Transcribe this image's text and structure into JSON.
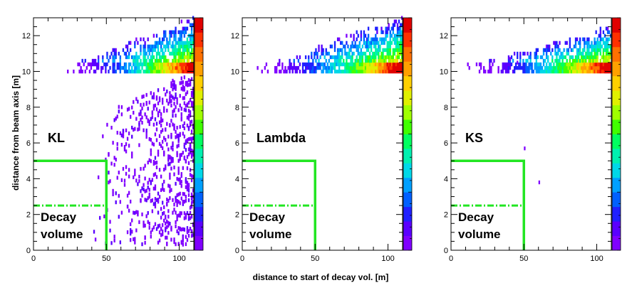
{
  "chart_data": {
    "type": "heatmap",
    "xlabel": "distance to start of decay vol. [m]",
    "ylabel": "distance from beam axis [m]",
    "xlim": [
      0,
      110
    ],
    "ylim": [
      0,
      13
    ],
    "x_ticks": [
      "0",
      "50",
      "100"
    ],
    "y_ticks": [
      "0",
      "2",
      "4",
      "6",
      "8",
      "10",
      "12"
    ],
    "colorscale": [
      "#8000ff",
      "#5a00ff",
      "#2020ff",
      "#0060ff",
      "#00a0ff",
      "#00d8e8",
      "#00f0b0",
      "#00ff60",
      "#40ff00",
      "#a0ff00",
      "#e0f000",
      "#ffd000",
      "#ffa000",
      "#ff7000",
      "#ff3000",
      "#e00000"
    ],
    "decay_volume": {
      "label_line1": "Decay",
      "label_line2": "volume",
      "outer_boundary": {
        "x_max": 50,
        "r_max": 5
      },
      "inner_boundary": {
        "r": 2.5,
        "style": "dash-dot"
      },
      "color": "#22e622"
    },
    "panels": [
      {
        "label": "KL",
        "bands": {
          "x_start": 22,
          "r_low": 9.9,
          "r_high": 13,
          "scatter": "heavy"
        }
      },
      {
        "label": "Lambda",
        "bands": {
          "x_start": 10,
          "r_low": 9.9,
          "r_high": 13,
          "scatter": "light"
        }
      },
      {
        "label": "KS",
        "bands": {
          "x_start": 10,
          "r_low": 9.9,
          "r_high": 12.5,
          "scatter": "minimal"
        }
      }
    ]
  }
}
